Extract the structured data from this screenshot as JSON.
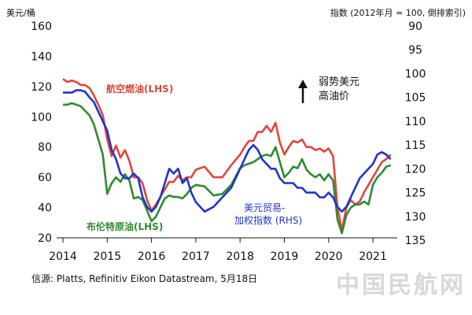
{
  "chart_data": {
    "type": "line",
    "left_axis_label": "美元/桶",
    "right_axis_label": "指数 (2012年月 = 100, 倒排索引)",
    "left_ylim": [
      20,
      160
    ],
    "left_ticks": [
      "20",
      "40",
      "60",
      "80",
      "100",
      "120",
      "140",
      "160"
    ],
    "right_ylim": [
      135,
      90
    ],
    "right_ticks": [
      "90",
      "95",
      "100",
      "105",
      "110",
      "115",
      "120",
      "125",
      "130",
      "135"
    ],
    "x_ticks": [
      "2014",
      "2015",
      "2016",
      "2017",
      "2018",
      "2019",
      "2020",
      "2021"
    ],
    "x_range": [
      2014.0,
      2021.55
    ],
    "annotation": [
      "弱势美元",
      "高油价"
    ],
    "source": "信源: Platts, Refinitiv Eikon Datastream, 5月18日",
    "watermark": "中国民航网",
    "series": [
      {
        "name": "航空燃油(LHS)",
        "axis": "left",
        "color": "#e0463c",
        "x": [
          2014.0,
          2014.1,
          2014.2,
          2014.3,
          2014.4,
          2014.5,
          2014.6,
          2014.7,
          2014.8,
          2014.9,
          2015.0,
          2015.1,
          2015.2,
          2015.3,
          2015.4,
          2015.5,
          2015.6,
          2015.7,
          2015.8,
          2015.9,
          2016.0,
          2016.1,
          2016.2,
          2016.3,
          2016.4,
          2016.5,
          2016.6,
          2016.7,
          2016.8,
          2016.9,
          2017.0,
          2017.2,
          2017.4,
          2017.6,
          2017.8,
          2018.0,
          2018.1,
          2018.2,
          2018.3,
          2018.4,
          2018.5,
          2018.6,
          2018.7,
          2018.8,
          2018.9,
          2019.0,
          2019.1,
          2019.2,
          2019.3,
          2019.4,
          2019.5,
          2019.6,
          2019.7,
          2019.8,
          2019.9,
          2020.0,
          2020.1,
          2020.2,
          2020.3,
          2020.4,
          2020.5,
          2020.6,
          2020.7,
          2020.8,
          2020.9,
          2021.0,
          2021.1,
          2021.2,
          2021.3,
          2021.4
        ],
        "values": [
          125,
          123,
          124,
          123,
          121,
          121,
          119,
          114,
          108,
          101,
          85,
          74,
          81,
          73,
          78,
          71,
          60,
          60,
          56,
          45,
          38,
          42,
          47,
          52,
          57,
          57,
          61,
          58,
          60,
          60,
          65,
          67,
          60,
          60,
          68,
          75,
          80,
          84,
          84,
          90,
          90,
          94,
          90,
          96,
          83,
          75,
          80,
          84,
          83,
          85,
          80,
          80,
          78,
          79,
          77,
          79,
          74,
          40,
          25,
          40,
          45,
          42,
          44,
          50,
          55,
          60,
          65,
          70,
          72,
          75
        ]
      },
      {
        "name": "布伦特原油(LHS)",
        "axis": "left",
        "color": "#2e8b2e",
        "x": [
          2014.0,
          2014.1,
          2014.2,
          2014.3,
          2014.4,
          2014.5,
          2014.6,
          2014.7,
          2014.8,
          2014.9,
          2015.0,
          2015.1,
          2015.2,
          2015.3,
          2015.4,
          2015.5,
          2015.6,
          2015.7,
          2015.8,
          2015.9,
          2016.0,
          2016.1,
          2016.2,
          2016.3,
          2016.4,
          2016.5,
          2016.6,
          2016.7,
          2016.8,
          2016.9,
          2017.0,
          2017.2,
          2017.4,
          2017.6,
          2017.8,
          2018.0,
          2018.1,
          2018.2,
          2018.3,
          2018.4,
          2018.5,
          2018.6,
          2018.7,
          2018.8,
          2018.9,
          2019.0,
          2019.1,
          2019.2,
          2019.3,
          2019.4,
          2019.5,
          2019.6,
          2019.7,
          2019.8,
          2019.9,
          2020.0,
          2020.1,
          2020.2,
          2020.3,
          2020.4,
          2020.5,
          2020.6,
          2020.7,
          2020.8,
          2020.9,
          2021.0,
          2021.1,
          2021.2,
          2021.3,
          2021.4
        ],
        "values": [
          108,
          108,
          109,
          108,
          107,
          104,
          101,
          95,
          85,
          75,
          49,
          56,
          60,
          57,
          62,
          58,
          46,
          47,
          45,
          38,
          31,
          34,
          40,
          46,
          48,
          47,
          47,
          46,
          49,
          53,
          55,
          54,
          48,
          49,
          55,
          66,
          68,
          69,
          70,
          72,
          74,
          75,
          74,
          80,
          70,
          60,
          63,
          67,
          66,
          72,
          65,
          62,
          60,
          62,
          58,
          62,
          58,
          32,
          23,
          35,
          40,
          42,
          42,
          44,
          42,
          55,
          60,
          63,
          67,
          68
        ]
      },
      {
        "name": "美元贸易-加权指数 (RHS)",
        "axis": "right",
        "color": "#2233cc",
        "x": [
          2014.0,
          2014.1,
          2014.2,
          2014.3,
          2014.4,
          2014.5,
          2014.6,
          2014.7,
          2014.8,
          2014.9,
          2015.0,
          2015.1,
          2015.2,
          2015.3,
          2015.4,
          2015.5,
          2015.6,
          2015.7,
          2015.8,
          2015.9,
          2016.0,
          2016.1,
          2016.2,
          2016.3,
          2016.4,
          2016.5,
          2016.6,
          2016.7,
          2016.8,
          2016.9,
          2017.0,
          2017.2,
          2017.4,
          2017.6,
          2017.8,
          2018.0,
          2018.1,
          2018.2,
          2018.3,
          2018.4,
          2018.5,
          2018.6,
          2018.7,
          2018.8,
          2018.9,
          2019.0,
          2019.1,
          2019.2,
          2019.3,
          2019.4,
          2019.5,
          2019.6,
          2019.7,
          2019.8,
          2019.9,
          2020.0,
          2020.1,
          2020.2,
          2020.3,
          2020.4,
          2020.5,
          2020.6,
          2020.7,
          2020.8,
          2020.9,
          2021.0,
          2021.1,
          2021.2,
          2021.3,
          2021.4
        ],
        "values": [
          104,
          104,
          104,
          103.5,
          103.5,
          103.8,
          105,
          106,
          108,
          110,
          112,
          116,
          118,
          121,
          122,
          122,
          121,
          122,
          126,
          128,
          129,
          128,
          126,
          123,
          120,
          121,
          120,
          123,
          122,
          125,
          127,
          129,
          128,
          126,
          124,
          120,
          118,
          116,
          115,
          116,
          118,
          119,
          120,
          120,
          122,
          123,
          123,
          123,
          124,
          124,
          125,
          125,
          125,
          126,
          126,
          125,
          126,
          128,
          129,
          128,
          126,
          124,
          122,
          121,
          120,
          119,
          117,
          116.5,
          117,
          118
        ]
      }
    ]
  }
}
